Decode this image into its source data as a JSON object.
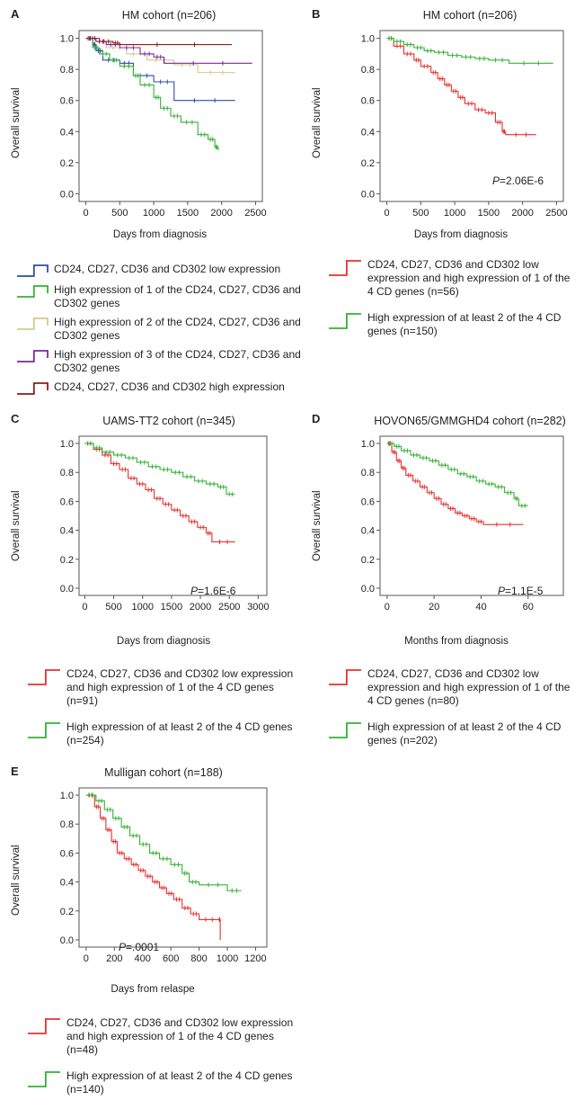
{
  "chart_data": [
    {
      "id": "A",
      "type": "line",
      "title": "HM cohort (n=206)",
      "xlabel": "Days from diagnosis",
      "ylabel": "Overall survival",
      "xlim": [
        -100,
        2600
      ],
      "ylim": [
        -0.05,
        1.05
      ],
      "xticks": [
        0,
        500,
        1000,
        1500,
        2000,
        2500
      ],
      "yticks": [
        0.0,
        0.2,
        0.4,
        0.6,
        0.8,
        1.0
      ],
      "ytick_labels": [
        "0.0",
        "0.2",
        "0.4",
        "0.6",
        "0.8",
        "1.0"
      ],
      "pvalue": null,
      "series": [
        {
          "name": "CD24, CD27, CD36 and CD302 low expression",
          "color": "#2b4fa8",
          "x": [
            0,
            100,
            150,
            250,
            500,
            700,
            1000,
            1300,
            2200
          ],
          "y": [
            1.0,
            0.96,
            0.92,
            0.86,
            0.84,
            0.76,
            0.72,
            0.6,
            0.6
          ]
        },
        {
          "name": "High expression of 1 of the CD24, CD27, CD36 and CD302 genes",
          "color": "#33b233",
          "x": [
            0,
            100,
            200,
            350,
            500,
            700,
            800,
            1000,
            1100,
            1250,
            1400,
            1650,
            1800,
            1900,
            1950
          ],
          "y": [
            1.0,
            0.94,
            0.9,
            0.86,
            0.82,
            0.76,
            0.7,
            0.62,
            0.55,
            0.5,
            0.46,
            0.38,
            0.35,
            0.3,
            0.28
          ]
        },
        {
          "name": "High expression of 2 of the CD24, CD27, CD36 and CD302 genes",
          "color": "#d4c98a",
          "x": [
            0,
            150,
            300,
            600,
            900,
            1300,
            1650,
            2200
          ],
          "y": [
            1.0,
            0.98,
            0.94,
            0.9,
            0.86,
            0.83,
            0.78,
            0.78
          ]
        },
        {
          "name": "High expression of 3 of the CD24, CD27, CD36 and CD302 genes",
          "color": "#7a2a9a",
          "x": [
            0,
            150,
            300,
            500,
            800,
            1000,
            1150,
            2450
          ],
          "y": [
            1.0,
            0.98,
            0.96,
            0.94,
            0.9,
            0.88,
            0.84,
            0.84
          ]
        },
        {
          "name": "CD24, CD27, CD36 and CD302 high expression",
          "color": "#8e1c1c",
          "x": [
            0,
            200,
            400,
            500,
            2150
          ],
          "y": [
            1.0,
            0.98,
            0.97,
            0.96,
            0.96
          ]
        }
      ]
    },
    {
      "id": "B",
      "type": "line",
      "title": "HM cohort (n=206)",
      "xlabel": "Days from diagnosis",
      "ylabel": "Overall survival",
      "xlim": [
        -100,
        2600
      ],
      "ylim": [
        -0.05,
        1.05
      ],
      "xticks": [
        0,
        500,
        1000,
        1500,
        2000,
        2500
      ],
      "yticks": [
        0.0,
        0.2,
        0.4,
        0.6,
        0.8,
        1.0
      ],
      "ytick_labels": [
        "0.0",
        "0.2",
        "0.4",
        "0.6",
        "0.8",
        "1.0"
      ],
      "pvalue": "2.06E-6",
      "series": [
        {
          "name": "CD24, CD27, CD36 and CD302 low expression and high expression of 1 of the 4 CD genes (n=56)",
          "color": "#e83030",
          "x": [
            0,
            100,
            250,
            400,
            500,
            650,
            750,
            850,
            950,
            1050,
            1150,
            1300,
            1450,
            1600,
            1700,
            1750,
            2200
          ],
          "y": [
            1.0,
            0.95,
            0.9,
            0.86,
            0.82,
            0.78,
            0.74,
            0.7,
            0.66,
            0.62,
            0.58,
            0.54,
            0.52,
            0.46,
            0.4,
            0.38,
            0.38
          ]
        },
        {
          "name": "High expression of at least 2 of the 4 CD genes (n=150)",
          "color": "#33b233",
          "x": [
            0,
            100,
            250,
            400,
            550,
            700,
            900,
            1100,
            1300,
            1500,
            1800,
            2450
          ],
          "y": [
            1.0,
            0.98,
            0.96,
            0.94,
            0.92,
            0.91,
            0.89,
            0.88,
            0.87,
            0.86,
            0.84,
            0.84
          ]
        }
      ]
    },
    {
      "id": "C",
      "type": "line",
      "title": "UAMS-TT2 cohort (n=345)",
      "xlabel": "Days from diagnosis",
      "ylabel": "Overall survival",
      "xlim": [
        -100,
        3150
      ],
      "ylim": [
        -0.05,
        1.05
      ],
      "xticks": [
        0,
        500,
        1000,
        1500,
        2000,
        2500,
        3000
      ],
      "yticks": [
        0.0,
        0.2,
        0.4,
        0.6,
        0.8,
        1.0
      ],
      "ytick_labels": [
        "0.0",
        "0.2",
        "0.4",
        "0.6",
        "0.8",
        "1.0"
      ],
      "pvalue": "1.6E-6",
      "series": [
        {
          "name": "CD24, CD27, CD36 and CD302 low expression and high expression of 1 of the 4 CD genes (n=91)",
          "color": "#e83030",
          "x": [
            0,
            150,
            300,
            450,
            600,
            750,
            900,
            1050,
            1200,
            1350,
            1500,
            1650,
            1800,
            1950,
            2100,
            2200,
            2600
          ],
          "y": [
            1.0,
            0.96,
            0.92,
            0.86,
            0.82,
            0.76,
            0.72,
            0.68,
            0.62,
            0.58,
            0.54,
            0.5,
            0.46,
            0.42,
            0.38,
            0.32,
            0.32
          ]
        },
        {
          "name": "High expression of at least 2 of the 4 CD genes (n=254)",
          "color": "#33b233",
          "x": [
            0,
            150,
            300,
            500,
            700,
            900,
            1100,
            1300,
            1500,
            1700,
            1900,
            2100,
            2300,
            2450,
            2600
          ],
          "y": [
            1.0,
            0.97,
            0.94,
            0.92,
            0.9,
            0.87,
            0.84,
            0.82,
            0.8,
            0.77,
            0.74,
            0.72,
            0.7,
            0.65,
            0.65
          ]
        }
      ]
    },
    {
      "id": "D",
      "type": "line",
      "title": "HOVON65/GMMGHD4 cohort (n=282)",
      "xlabel": "Months from diagnosis",
      "ylabel": "Overall survival",
      "xlim": [
        -3,
        75
      ],
      "ylim": [
        -0.05,
        1.05
      ],
      "xticks": [
        0,
        20,
        40,
        60
      ],
      "yticks": [
        0.0,
        0.2,
        0.4,
        0.6,
        0.8,
        1.0
      ],
      "ytick_labels": [
        "0.0",
        "0.2",
        "0.4",
        "0.6",
        "0.8",
        "1.0"
      ],
      "pvalue": "1.1E-5",
      "series": [
        {
          "name": "CD24, CD27, CD36 and CD302 low expression and high expression of 1 of the 4 CD genes (n=80)",
          "color": "#e83030",
          "x": [
            0,
            2,
            4,
            6,
            8,
            11,
            14,
            17,
            20,
            23,
            26,
            29,
            32,
            35,
            38,
            41,
            58
          ],
          "y": [
            1.0,
            0.94,
            0.88,
            0.83,
            0.78,
            0.74,
            0.7,
            0.66,
            0.62,
            0.58,
            0.55,
            0.52,
            0.5,
            0.48,
            0.46,
            0.44,
            0.44
          ]
        },
        {
          "name": "High expression of at least 2 of the 4 CD genes (n=202)",
          "color": "#33b233",
          "x": [
            0,
            3,
            6,
            10,
            14,
            18,
            22,
            26,
            30,
            34,
            38,
            42,
            46,
            50,
            54,
            56,
            60
          ],
          "y": [
            1.0,
            0.98,
            0.95,
            0.92,
            0.9,
            0.88,
            0.85,
            0.82,
            0.79,
            0.77,
            0.74,
            0.72,
            0.7,
            0.66,
            0.62,
            0.57,
            0.57
          ]
        }
      ]
    },
    {
      "id": "E",
      "type": "line",
      "title": "Mulligan cohort (n=188)",
      "xlabel": "Days from relaspe",
      "ylabel": "Overall survival",
      "xlim": [
        -50,
        1280
      ],
      "ylim": [
        -0.05,
        1.05
      ],
      "xticks": [
        0,
        200,
        400,
        600,
        800,
        1000,
        1200
      ],
      "yticks": [
        0.0,
        0.2,
        0.4,
        0.6,
        0.8,
        1.0
      ],
      "ytick_labels": [
        "0.0",
        "0.2",
        "0.4",
        "0.6",
        "0.8",
        "1.0"
      ],
      "pvalue": ".0001",
      "series": [
        {
          "name": "CD24, CD27, CD36 and CD302 low expression and high expression of 1 of the 4 CD genes (n=48)",
          "color": "#e83030",
          "x": [
            0,
            60,
            100,
            140,
            180,
            220,
            270,
            320,
            370,
            420,
            470,
            520,
            570,
            620,
            680,
            740,
            800,
            940,
            950
          ],
          "y": [
            1.0,
            0.92,
            0.84,
            0.76,
            0.68,
            0.6,
            0.56,
            0.52,
            0.48,
            0.44,
            0.4,
            0.36,
            0.32,
            0.28,
            0.22,
            0.18,
            0.14,
            0.14,
            0.0
          ]
        },
        {
          "name": "High expression of at least 2 of the 4 CD genes (n=140)",
          "color": "#33b233",
          "x": [
            0,
            70,
            130,
            190,
            250,
            310,
            380,
            450,
            520,
            600,
            680,
            730,
            800,
            1000,
            1100
          ],
          "y": [
            1.0,
            0.96,
            0.9,
            0.84,
            0.78,
            0.72,
            0.66,
            0.6,
            0.56,
            0.52,
            0.46,
            0.4,
            0.38,
            0.34,
            0.34
          ]
        }
      ]
    }
  ],
  "legends": {
    "A": [
      "CD24, CD27, CD36 and CD302 low expression",
      "High expression of 1 of the CD24, CD27, CD36 and CD302 genes",
      "High expression of 2 of the CD24, CD27, CD36 and CD302 genes",
      "High expression of 3 of the CD24, CD27, CD36 and CD302 genes",
      "CD24, CD27, CD36 and CD302 high expression"
    ],
    "B": [
      "CD24, CD27, CD36 and CD302 low expression and high expression of 1 of the 4 CD genes (n=56)",
      "High expression of at least 2 of the 4 CD genes (n=150)"
    ],
    "C": [
      "CD24, CD27, CD36 and CD302 low expression and high expression of 1 of the 4 CD genes (n=91)",
      "High expression of at least 2 of the 4 CD genes (n=254)"
    ],
    "D": [
      "CD24, CD27, CD36 and CD302 low expression and high expression of 1 of the 4 CD genes (n=80)",
      "High expression of at least 2 of the 4 CD genes (n=202)"
    ],
    "E": [
      "CD24, CD27, CD36 and CD302 low expression and high expression of 1 of the 4 CD genes (n=48)",
      "High expression of at least 2 of the 4 CD genes (n=140)"
    ]
  },
  "pvalue_prefix": "P",
  "pvalue_sep": "="
}
